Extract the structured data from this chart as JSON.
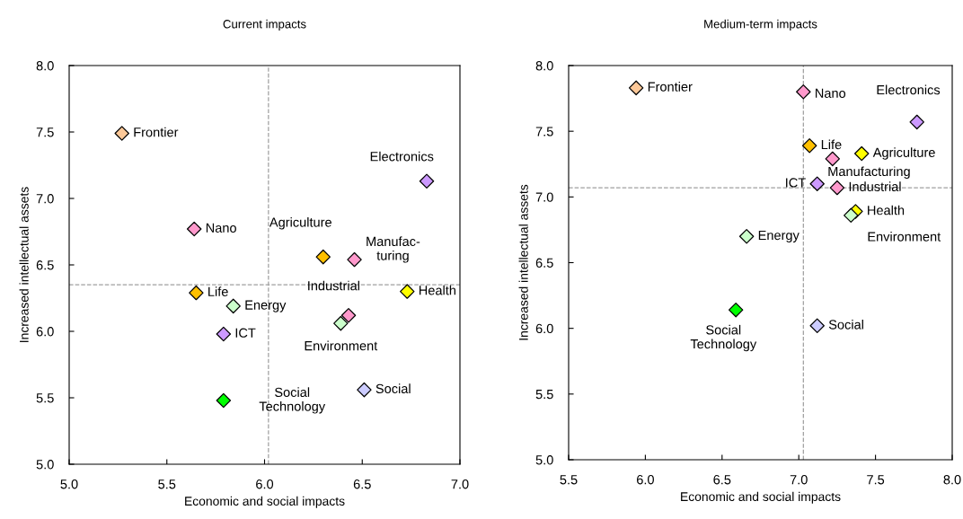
{
  "chart_data": [
    {
      "type": "scatter",
      "title": "Current impacts",
      "xlabel": "Economic and social impacts",
      "ylabel": "Increased intellectual assets",
      "x": [
        5.27,
        5.64,
        6.83,
        5.65,
        6.3,
        6.46,
        5.79,
        6.43,
        6.73,
        6.39,
        5.84,
        5.79,
        6.51
      ],
      "values": [
        7.49,
        6.77,
        7.13,
        6.29,
        6.56,
        6.54,
        5.98,
        6.12,
        6.3,
        6.06,
        6.19,
        5.48,
        5.56
      ],
      "colors": [
        "#fcc898",
        "#ff99cc",
        "#cc99ff",
        "#ffc000",
        "#ffc000",
        "#ff99cc",
        "#cc99ff",
        "#ff99cc",
        "#ffff00",
        "#ccffcc",
        "#ccffcc",
        "#00ff00",
        "#ccccff"
      ],
      "marker": "diamond",
      "xlim": [
        5.0,
        7.0
      ],
      "xticks": [
        {
          "value": 5.0,
          "label": "5.0"
        },
        5.5,
        {
          "value": 6.0,
          "label": "6.0"
        },
        6.5,
        {
          "value": 7.0,
          "label": "7.0"
        }
      ],
      "ylim": [
        5.0,
        8.0
      ],
      "yticks": [
        {
          "value": 5.0,
          "label": "5.0"
        },
        5.5,
        {
          "value": 6.0,
          "label": "6.0"
        },
        6.5,
        {
          "value": 7.0,
          "label": "7.0"
        },
        7.5,
        {
          "value": 8.0,
          "label": "8.0"
        }
      ],
      "ref_lines": [
        {
          "axis": "x",
          "value": 6.02,
          "color": "#a0a0a0",
          "line_style": "dashed"
        },
        {
          "axis": "y",
          "value": 6.35,
          "color": "#a0a0a0",
          "line_style": "dashed"
        }
      ],
      "annotations": [
        {
          "text": "Frontier",
          "x": 5.27,
          "y": 7.49
        },
        {
          "text": "Nano",
          "x": 5.64,
          "y": 6.77
        },
        {
          "text": "Electronics",
          "x": 6.83,
          "y": 7.13
        },
        {
          "text": "Life",
          "x": 5.65,
          "y": 6.29
        },
        {
          "text": "Agriculture",
          "x": 6.3,
          "y": 6.56
        },
        {
          "text": "Manufac-\nturing",
          "x": 6.46,
          "y": 6.54
        },
        {
          "text": "ICT",
          "x": 5.79,
          "y": 5.98
        },
        {
          "text": "Industrial",
          "x": 6.43,
          "y": 6.12
        },
        {
          "text": "Health",
          "x": 6.73,
          "y": 6.3
        },
        {
          "text": "Environment",
          "x": 6.39,
          "y": 6.06
        },
        {
          "text": "Energy",
          "x": 5.84,
          "y": 6.19
        },
        {
          "text": "Social\nTechnology",
          "x": 5.79,
          "y": 5.48
        },
        {
          "text": "Social",
          "x": 6.51,
          "y": 5.56
        }
      ]
    },
    {
      "type": "scatter",
      "title": "Medium-term impacts",
      "xlabel": "Economic and social impacts",
      "ylabel": "Increased intellectual assets",
      "x": [
        5.94,
        7.03,
        7.77,
        7.07,
        7.41,
        7.22,
        7.12,
        7.25,
        7.37,
        7.34,
        6.66,
        6.59,
        7.12
      ],
      "values": [
        7.83,
        7.8,
        7.57,
        7.39,
        7.33,
        7.29,
        7.1,
        7.07,
        6.89,
        6.86,
        6.7,
        6.14,
        6.02
      ],
      "colors": [
        "#fcc898",
        "#ff99cc",
        "#cc99ff",
        "#ffc000",
        "#ffff00",
        "#ff99cc",
        "#cc99ff",
        "#ff99cc",
        "#ffff00",
        "#ccffcc",
        "#ccffcc",
        "#00ff00",
        "#ccccff"
      ],
      "marker": "diamond",
      "xlim": [
        5.5,
        8.0
      ],
      "xticks": [
        5.5,
        {
          "value": 6.0,
          "label": "6.0"
        },
        6.5,
        {
          "value": 7.0,
          "label": "7.0"
        },
        7.5,
        {
          "value": 8.0,
          "label": "8.0"
        }
      ],
      "ylim": [
        5.0,
        8.0
      ],
      "yticks": [
        {
          "value": 5.0,
          "label": "5.0"
        },
        5.5,
        {
          "value": 6.0,
          "label": "6.0"
        },
        6.5,
        {
          "value": 7.0,
          "label": "7.0"
        },
        7.5,
        {
          "value": 8.0,
          "label": "8.0"
        }
      ],
      "ref_lines": [
        {
          "axis": "x",
          "value": 7.03,
          "color": "#a0a0a0",
          "line_style": "dashed"
        },
        {
          "axis": "y",
          "value": 7.07,
          "color": "#a0a0a0",
          "line_style": "dashed"
        }
      ],
      "annotations": [
        {
          "text": "Frontier",
          "x": 5.94,
          "y": 7.83
        },
        {
          "text": "Nano",
          "x": 7.03,
          "y": 7.8
        },
        {
          "text": "Electronics",
          "x": 7.77,
          "y": 7.57
        },
        {
          "text": "Life",
          "x": 7.07,
          "y": 7.39
        },
        {
          "text": "Agriculture",
          "x": 7.41,
          "y": 7.33
        },
        {
          "text": "Manufacturing",
          "x": 7.22,
          "y": 7.29
        },
        {
          "text": "ICT",
          "x": 7.12,
          "y": 7.1
        },
        {
          "text": "Industrial",
          "x": 7.25,
          "y": 7.07
        },
        {
          "text": "Health",
          "x": 7.37,
          "y": 6.89
        },
        {
          "text": "Environment",
          "x": 7.34,
          "y": 6.86
        },
        {
          "text": "Energy",
          "x": 6.66,
          "y": 6.7
        },
        {
          "text": "Social\nTechnology",
          "x": 6.59,
          "y": 6.14
        },
        {
          "text": "Social",
          "x": 7.12,
          "y": 6.02
        }
      ]
    }
  ]
}
